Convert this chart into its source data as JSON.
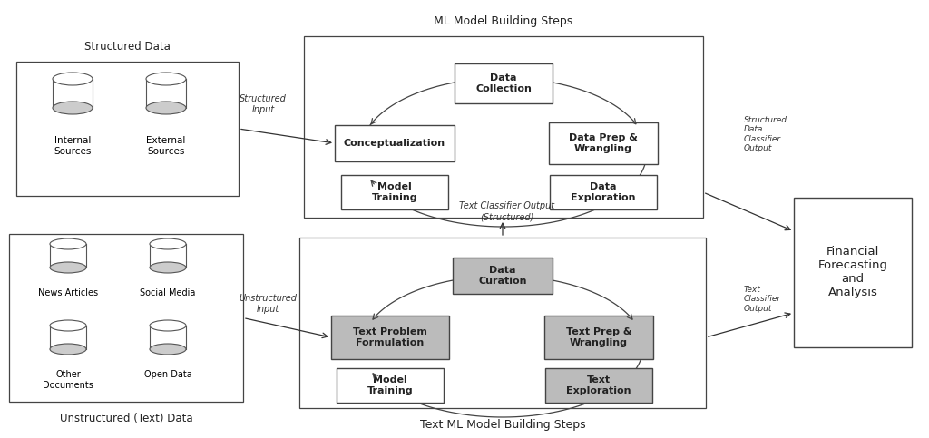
{
  "bg_color": "#ffffff",
  "fig_bg": "#ffffff",
  "structured_data_label": "Structured Data",
  "unstructured_data_label": "Unstructured (Text) Data",
  "ml_steps_label": "ML Model Building Steps",
  "text_ml_steps_label": "Text ML Model Building Steps",
  "structured_input_label": "Structured\nInput",
  "unstructured_input_label": "Unstructured\nInput",
  "structured_output_label": "Structured\nData\nClassifier\nOutput",
  "text_classifier_output_label": "Text Classifier Output\n(Structured)",
  "text_classifier_output2_label": "Text\nClassifier\nOutput",
  "financial_label": "Financial\nForecasting\nand\nAnalysis",
  "gray_fill": "#bbbbbb",
  "white_fill": "#ffffff",
  "edge_color": "#444444",
  "text_color": "#222222"
}
